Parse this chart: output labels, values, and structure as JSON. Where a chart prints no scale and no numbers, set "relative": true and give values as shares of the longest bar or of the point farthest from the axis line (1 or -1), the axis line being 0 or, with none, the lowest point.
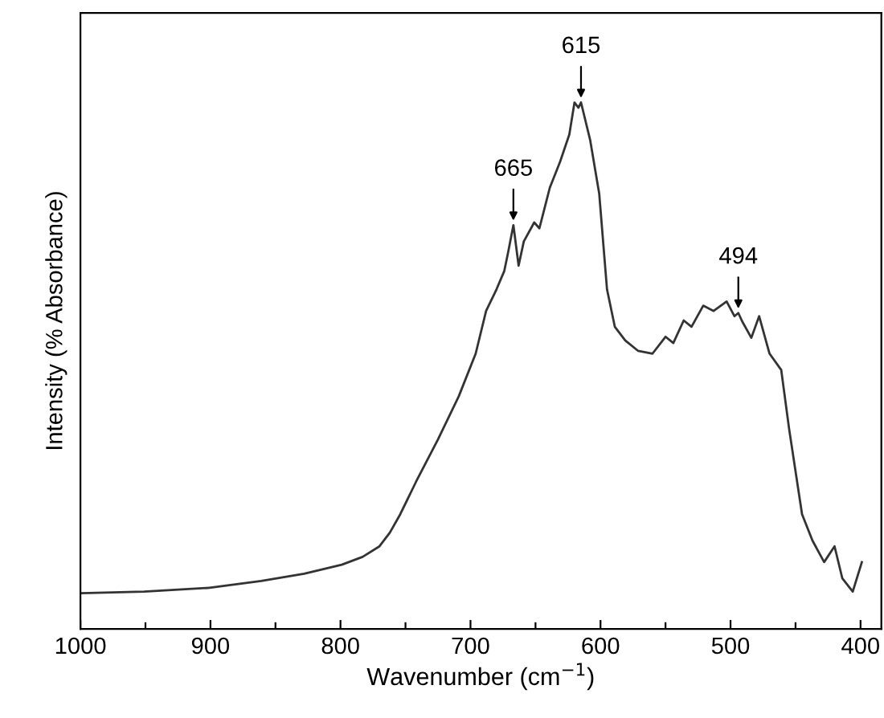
{
  "chart_data": {
    "type": "line",
    "relative": true,
    "xlabel": "Wavenumber (cm$^{−1}$)",
    "ylabel": "Intensity (% Absorbance)",
    "xlim": [
      1000,
      384
    ],
    "xticks": [
      1000,
      {
        "value": 950,
        "label": null
      },
      900,
      {
        "value": 850,
        "label": null
      },
      800,
      {
        "value": 750,
        "label": null
      },
      700,
      {
        "value": 650,
        "label": null
      },
      600,
      {
        "value": 550,
        "label": null
      },
      500,
      {
        "value": 450,
        "label": null
      },
      400
    ],
    "tick_labels": "x",
    "grid": false,
    "legend": false,
    "series": [
      {
        "color": "#333333",
        "x": [
          1000,
          951,
          902,
          861,
          828,
          799,
          783,
          770,
          762,
          754,
          742,
          725,
          709,
          696,
          688,
          680,
          674,
          671,
          667,
          663,
          659,
          651,
          647,
          639,
          631,
          624,
          620,
          617,
          615,
          608,
          601,
          595,
          589,
          581,
          571,
          560,
          550,
          544,
          536,
          530,
          521,
          513,
          503,
          497,
          494,
          491,
          484,
          478,
          470,
          461,
          455,
          445,
          437,
          428,
          420,
          414,
          406,
          399
        ],
        "values": [
          0.068,
          0.071,
          0.078,
          0.091,
          0.105,
          0.122,
          0.137,
          0.157,
          0.183,
          0.218,
          0.279,
          0.36,
          0.442,
          0.523,
          0.604,
          0.645,
          0.68,
          0.716,
          0.767,
          0.69,
          0.736,
          0.772,
          0.761,
          0.838,
          0.888,
          0.939,
          1.0,
          0.99,
          1.0,
          0.929,
          0.827,
          0.645,
          0.574,
          0.548,
          0.528,
          0.523,
          0.555,
          0.543,
          0.586,
          0.574,
          0.614,
          0.604,
          0.622,
          0.594,
          0.6,
          0.584,
          0.553,
          0.594,
          0.523,
          0.492,
          0.381,
          0.218,
          0.168,
          0.127,
          0.157,
          0.096,
          0.071,
          0.127
        ]
      }
    ],
    "annotations": [
      {
        "text": "665",
        "x": 667,
        "y": 0.767
      },
      {
        "text": "615",
        "x": 615,
        "y": 1.0
      },
      {
        "text": "494",
        "x": 494,
        "y": 0.6
      }
    ]
  }
}
